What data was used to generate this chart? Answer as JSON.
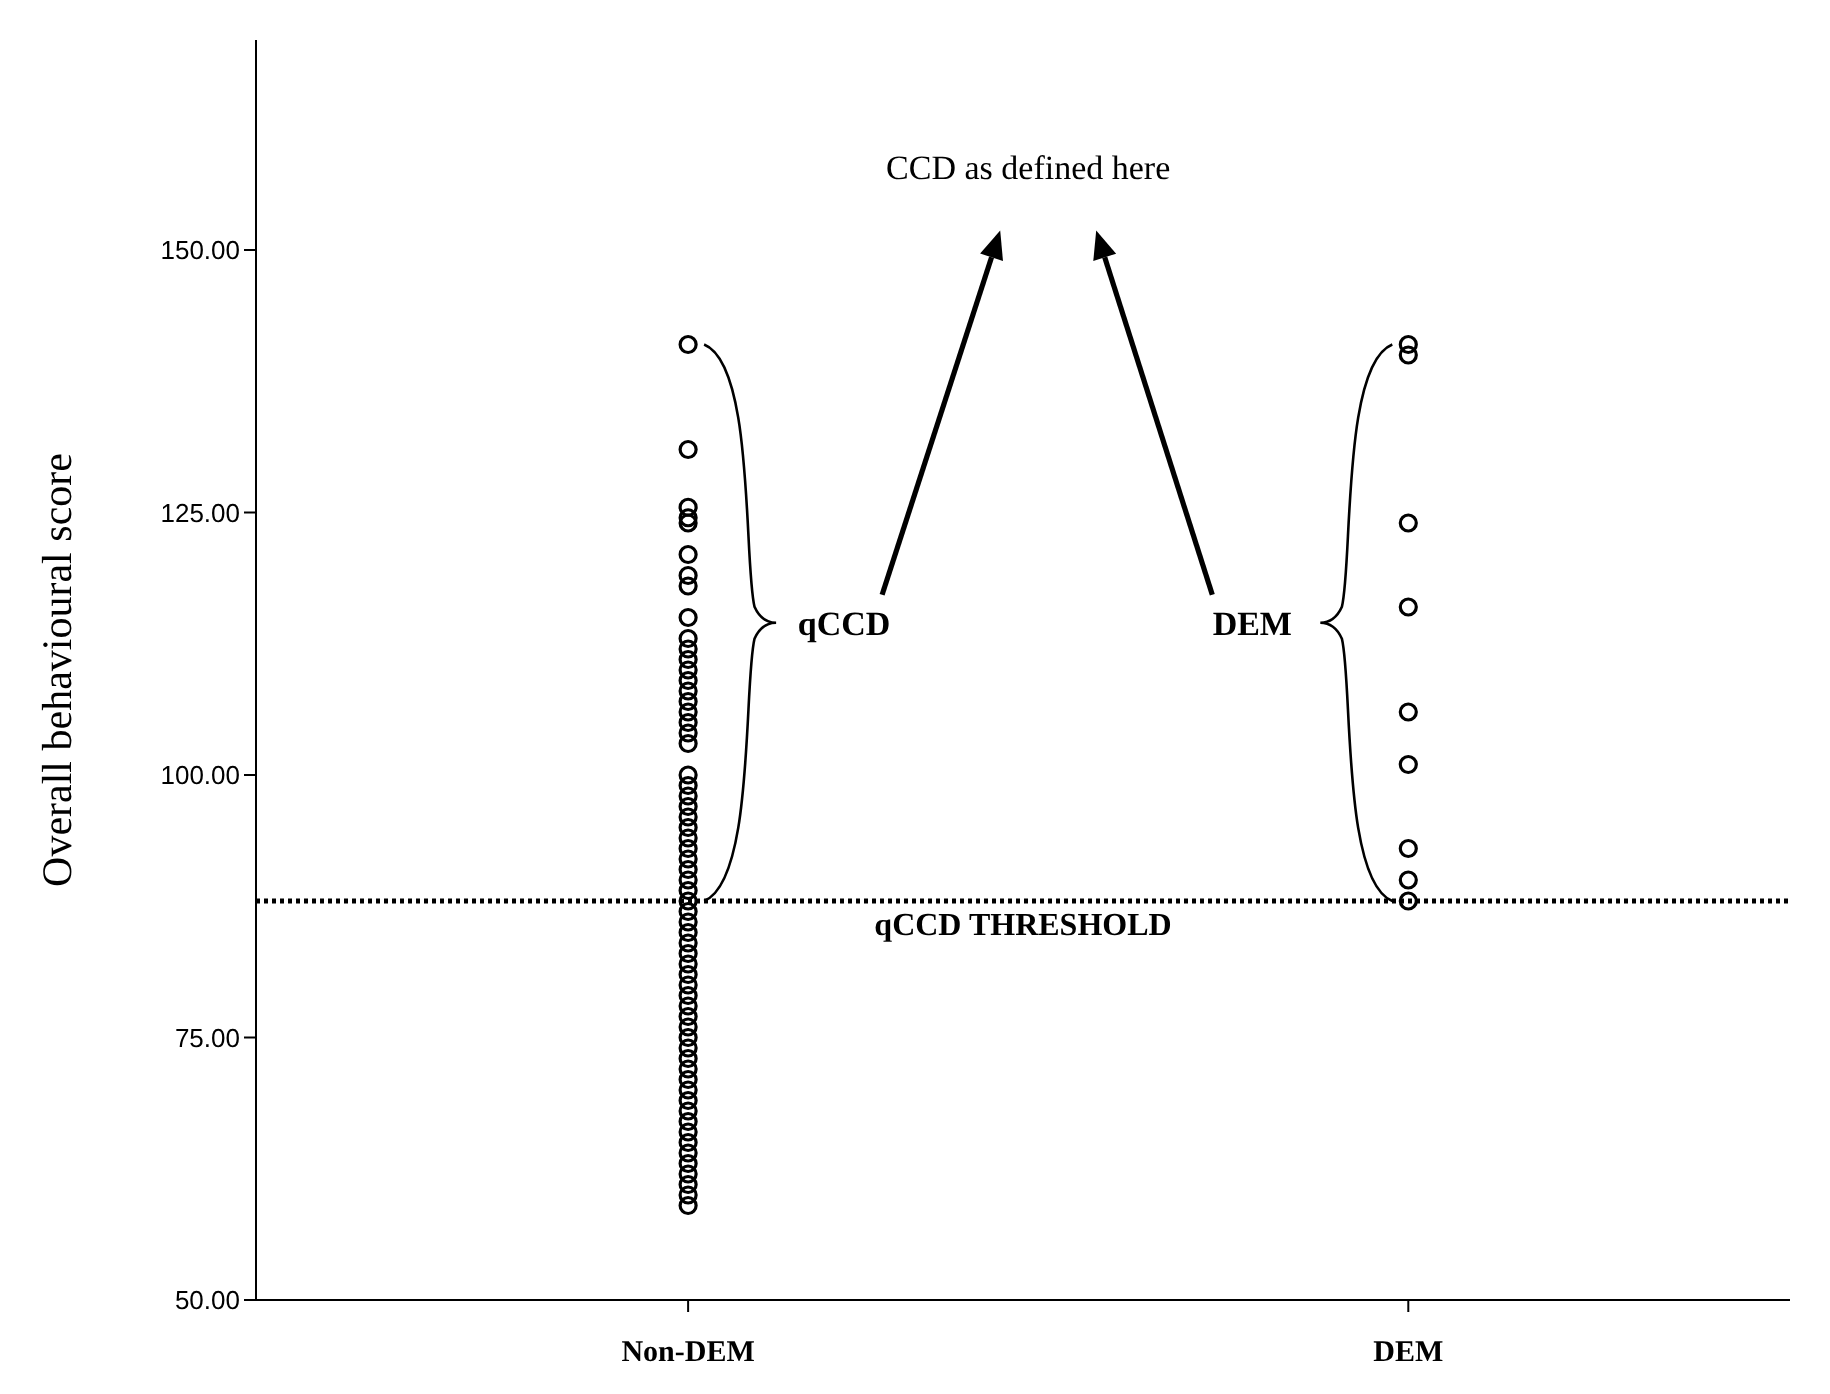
{
  "chart_data": {
    "type": "scatter",
    "categories": [
      "Non-DEM",
      "DEM"
    ],
    "ylabel": "Overall behavioural score",
    "ylim": [
      50,
      170
    ],
    "yticks": [
      {
        "value": 50,
        "label": "50.00"
      },
      {
        "value": 75,
        "label": "75.00"
      },
      {
        "value": 100,
        "label": "100.00"
      },
      {
        "value": 125,
        "label": "125.00"
      },
      {
        "value": 150,
        "label": "150.00"
      }
    ],
    "marker": "circle",
    "series": [
      {
        "color": "#000000",
        "x": [
          "Non-DEM",
          "Non-DEM",
          "Non-DEM",
          "Non-DEM",
          "Non-DEM",
          "Non-DEM",
          "Non-DEM",
          "Non-DEM",
          "Non-DEM",
          "Non-DEM",
          "Non-DEM",
          "Non-DEM",
          "Non-DEM",
          "Non-DEM",
          "Non-DEM",
          "Non-DEM",
          "Non-DEM",
          "Non-DEM",
          "Non-DEM",
          "Non-DEM",
          "Non-DEM",
          "Non-DEM",
          "Non-DEM",
          "Non-DEM",
          "Non-DEM",
          "Non-DEM",
          "Non-DEM",
          "Non-DEM",
          "Non-DEM",
          "Non-DEM",
          "Non-DEM",
          "Non-DEM",
          "Non-DEM",
          "Non-DEM",
          "Non-DEM",
          "Non-DEM",
          "Non-DEM",
          "Non-DEM",
          "Non-DEM",
          "Non-DEM",
          "Non-DEM",
          "Non-DEM",
          "Non-DEM",
          "Non-DEM",
          "Non-DEM",
          "Non-DEM",
          "Non-DEM",
          "Non-DEM",
          "Non-DEM",
          "Non-DEM",
          "Non-DEM",
          "Non-DEM",
          "Non-DEM",
          "Non-DEM",
          "Non-DEM",
          "Non-DEM",
          "Non-DEM",
          "Non-DEM",
          "Non-DEM",
          "Non-DEM",
          "Non-DEM",
          "Non-DEM"
        ],
        "values": [
          141,
          131,
          125.5,
          124.5,
          124,
          121,
          119,
          118,
          115,
          113,
          112,
          111,
          110,
          109,
          108,
          107,
          106,
          105,
          104,
          103,
          100,
          99,
          98,
          97,
          96,
          95,
          94,
          93,
          92,
          91,
          90,
          89,
          88,
          87,
          86,
          85,
          84,
          83,
          82,
          81,
          80,
          79,
          78,
          77,
          76,
          75,
          74,
          73,
          72,
          71,
          70,
          69,
          68,
          67,
          66,
          65,
          64,
          63,
          62,
          61,
          60,
          59
        ]
      },
      {
        "color": "#000000",
        "x": [
          "DEM",
          "DEM",
          "DEM",
          "DEM",
          "DEM",
          "DEM",
          "DEM",
          "DEM",
          "DEM"
        ],
        "values": [
          141,
          140,
          124,
          116,
          106,
          101,
          93,
          90,
          88
        ]
      }
    ],
    "ref_lines": [
      {
        "axis": "y",
        "value": 88,
        "label": "qCCD THRESHOLD",
        "line_style": "dotted",
        "color": "#000000"
      }
    ],
    "annotations": [
      "CCD as defined here",
      "qCCD",
      "DEM"
    ]
  }
}
